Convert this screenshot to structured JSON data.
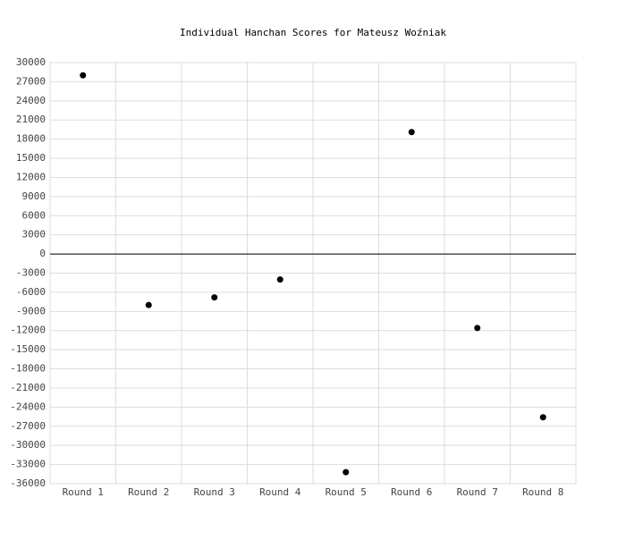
{
  "chart_data": {
    "type": "scatter",
    "title": "Individual Hanchan Scores for Mateusz Woźniak",
    "categories": [
      "Round 1",
      "Round 2",
      "Round 3",
      "Round 4",
      "Round 5",
      "Round 6",
      "Round 7",
      "Round 8"
    ],
    "values": [
      28000,
      -8000,
      -6800,
      -4000,
      -34200,
      19100,
      -11600,
      -25600
    ],
    "color": "#000000",
    "ylim": [
      -36000,
      30000
    ],
    "yticks": [
      -36000,
      -33000,
      -30000,
      -27000,
      -24000,
      -21000,
      -18000,
      -15000,
      -12000,
      -9000,
      -6000,
      -3000,
      0,
      3000,
      6000,
      9000,
      12000,
      15000,
      18000,
      21000,
      24000,
      27000,
      30000
    ],
    "grid": true
  }
}
